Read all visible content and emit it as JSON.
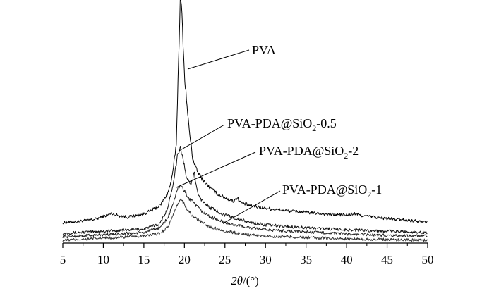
{
  "chart_data": {
    "type": "line",
    "xlabel_parts": {
      "theta": "2θ",
      "unit": "/(°)"
    },
    "ylabel": "",
    "xlim": [
      5,
      50
    ],
    "x_ticks": [
      5,
      10,
      15,
      20,
      25,
      30,
      35,
      40,
      45,
      50
    ],
    "grid": false,
    "legend": "direct labels with leader lines",
    "series": [
      {
        "name": "PVA",
        "label_parts": {
          "pre": "PVA",
          "sub": "",
          "post": ""
        },
        "x": [
          5,
          7,
          9,
          10,
          11,
          12,
          13,
          14,
          15,
          16,
          17,
          18,
          18.5,
          19,
          19.3,
          19.5,
          19.7,
          20,
          20.5,
          21,
          21.5,
          22,
          23,
          24,
          25,
          26,
          26.5,
          27,
          28,
          30,
          32,
          35,
          38,
          40,
          41,
          42,
          45,
          48,
          50
        ],
        "y": [
          6,
          8,
          11,
          15,
          19,
          16,
          14,
          16,
          19,
          24,
          31,
          50,
          72,
          120,
          250,
          332,
          305,
          220,
          150,
          100,
          82,
          72,
          58,
          48,
          42,
          37,
          42,
          35,
          31,
          27,
          24,
          21,
          18,
          17,
          19,
          16,
          12,
          9,
          8
        ],
        "color": "#000000"
      },
      {
        "name": "PVA-PDA@SiO2-0.5",
        "label_parts": {
          "pre": "PVA-PDA@SiO",
          "sub": "2",
          "post": "-0.5"
        },
        "x": [
          5,
          10,
          15,
          17,
          18,
          18.7,
          19.2,
          19.5,
          19.8,
          20.2,
          20.8,
          21.2,
          21.5,
          22,
          23,
          25,
          28,
          30,
          35,
          40,
          45,
          50
        ],
        "y": [
          2,
          5,
          8,
          16,
          40,
          80,
          118,
          126,
          110,
          85,
          70,
          90,
          66,
          52,
          40,
          28,
          18,
          14,
          10,
          7,
          5,
          3
        ],
        "color": "#111111"
      },
      {
        "name": "PVA-PDA@SiO2-2",
        "label_parts": {
          "pre": "PVA-PDA@SiO",
          "sub": "2",
          "post": "-2"
        },
        "x": [
          5,
          10,
          15,
          17,
          18,
          18.8,
          19.3,
          19.6,
          20,
          20.5,
          21,
          22,
          23,
          25,
          28,
          30,
          35,
          40,
          45,
          50
        ],
        "y": [
          0,
          3,
          6,
          13,
          28,
          55,
          72,
          74,
          66,
          56,
          50,
          38,
          30,
          20,
          13,
          10,
          7,
          4,
          2,
          1
        ],
        "color": "#222222"
      },
      {
        "name": "PVA-PDA@SiO2-1",
        "label_parts": {
          "pre": "PVA-PDA@SiO",
          "sub": "2",
          "post": "-1"
        },
        "x": [
          5,
          10,
          15,
          17,
          18,
          18.8,
          19.3,
          19.6,
          20,
          20.5,
          21,
          22,
          23,
          25,
          28,
          30,
          35,
          40,
          45,
          50
        ],
        "y": [
          -2,
          1,
          4,
          8,
          18,
          38,
          54,
          57,
          50,
          40,
          33,
          25,
          18,
          11,
          6,
          4,
          2,
          0,
          -1,
          -2
        ],
        "color": "#333333"
      }
    ]
  }
}
